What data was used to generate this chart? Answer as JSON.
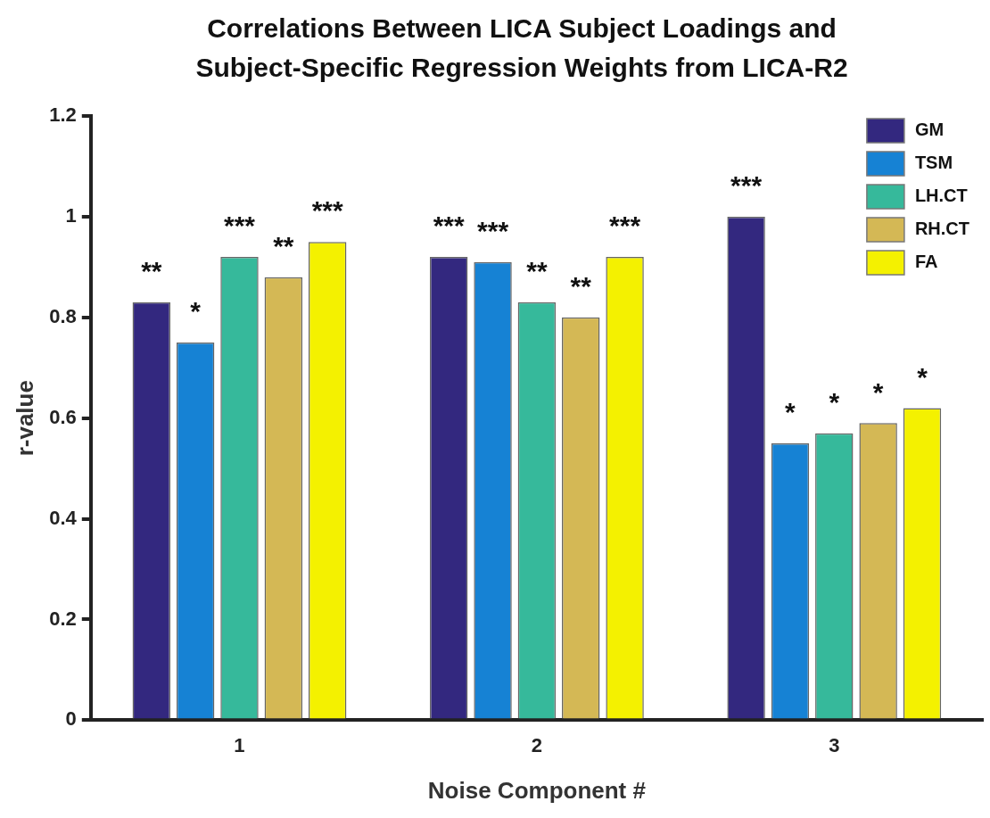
{
  "chart_data": {
    "type": "bar",
    "title": "Correlations Between LICA Subject Loadings and Subject-Specific Regression Weights from LICA-R2",
    "xlabel": "Noise Component #",
    "ylabel": "r-value",
    "categories": [
      "1",
      "2",
      "3"
    ],
    "series": [
      {
        "name": "GM",
        "color": "#33287f",
        "values": [
          0.83,
          0.92,
          1.0
        ],
        "value_labels": [
          "**",
          "***",
          "***"
        ]
      },
      {
        "name": "TSM",
        "color": "#1682d4",
        "values": [
          0.75,
          0.91,
          0.55
        ],
        "value_labels": [
          "*",
          "***",
          "*"
        ]
      },
      {
        "name": "LH.CT",
        "color": "#36b99b",
        "values": [
          0.92,
          0.83,
          0.57
        ],
        "value_labels": [
          "***",
          "**",
          "*"
        ]
      },
      {
        "name": "RH.CT",
        "color": "#d4b855",
        "values": [
          0.88,
          0.8,
          0.59
        ],
        "value_labels": [
          "**",
          "**",
          "*"
        ]
      },
      {
        "name": "FA",
        "color": "#f4f100",
        "values": [
          0.95,
          0.92,
          0.62
        ],
        "value_labels": [
          "***",
          "***",
          "*"
        ]
      }
    ],
    "ylim": [
      0,
      1.2
    ],
    "yticks": [
      0,
      0.2,
      0.4,
      0.6,
      0.8,
      1,
      1.2
    ],
    "grid": false,
    "legend": "top right"
  }
}
